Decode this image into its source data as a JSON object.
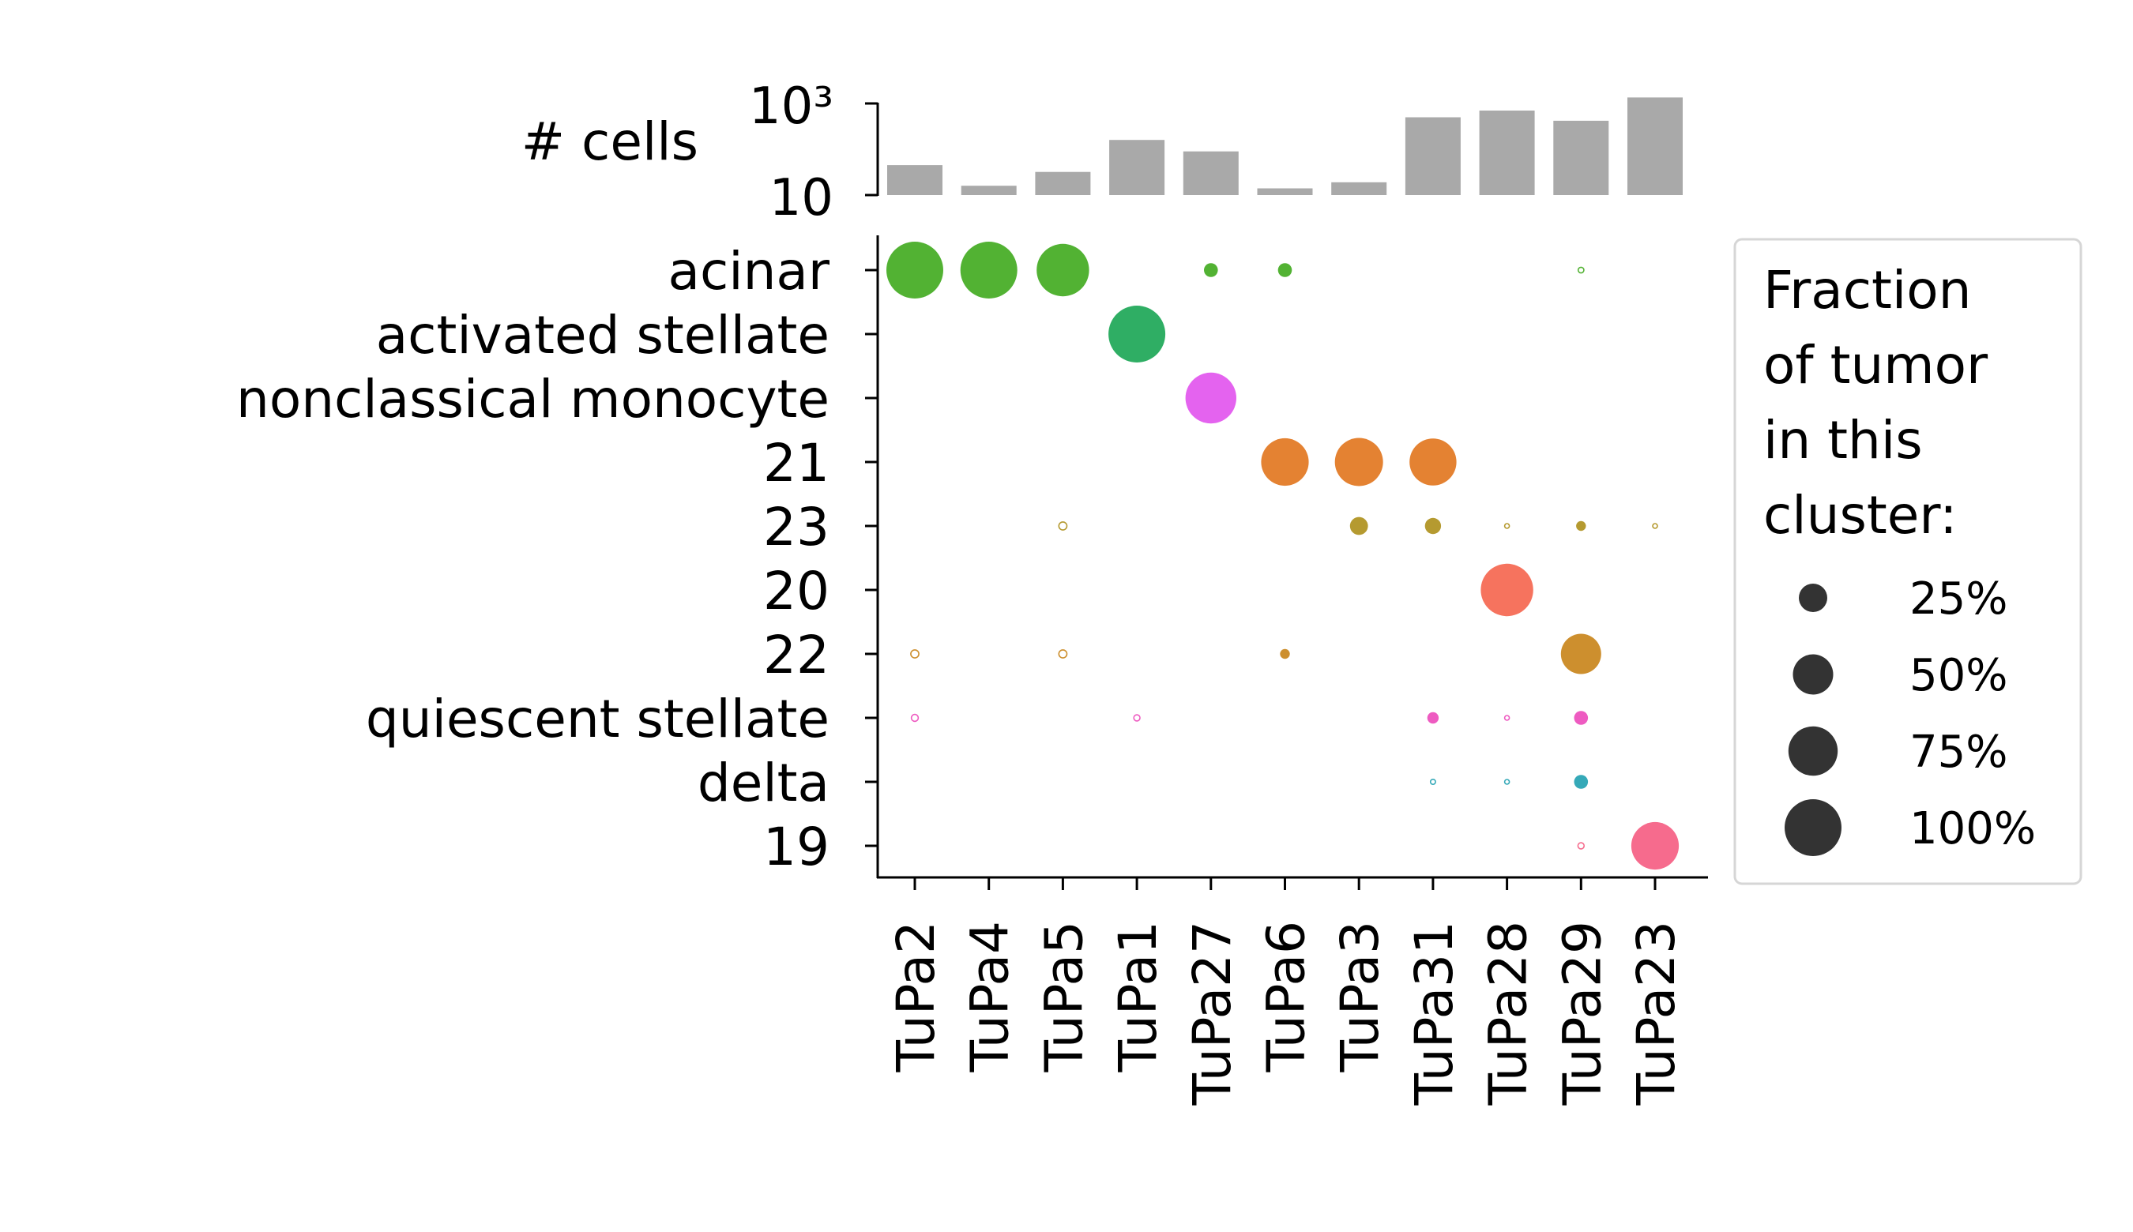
{
  "chart_data": {
    "type": "dot-plot",
    "tumors": [
      "TuPa2",
      "TuPa4",
      "TuPa5",
      "TuPa1",
      "TuPa27",
      "TuPa6",
      "TuPa3",
      "TuPa31",
      "TuPa28",
      "TuPa29",
      "TuPa23"
    ],
    "clusters": [
      "acinar",
      "activated stellate",
      "nonclassical monocyte",
      "21",
      "23",
      "20",
      "22",
      "quiescent stellate",
      "delta",
      "19"
    ],
    "cluster_colors": {
      "acinar": "#52b233",
      "activated stellate": "#2fae64",
      "nonclassical monocyte": "#e463ef",
      "21": "#e48232",
      "23": "#b59a30",
      "20": "#f6735e",
      "22": "#cd8f2e",
      "quiescent stellate": "#ee5bc1",
      "delta": "#35a9b8",
      "19": "#f66b8d"
    },
    "top_panel": {
      "ylabel": "# cells",
      "yscale": "log",
      "yticks": [
        10,
        1000
      ],
      "ytick_labels": [
        "10",
        "10³"
      ],
      "values": [
        45,
        16,
        32,
        160,
        90,
        14,
        19,
        500,
        700,
        420,
        1350
      ],
      "bar_color": "#a9a9a9"
    },
    "legend": {
      "title_lines": [
        "Fraction",
        "of tumor",
        "in this",
        "cluster:"
      ],
      "entries": [
        {
          "label": "25%",
          "fraction": 0.25
        },
        {
          "label": "50%",
          "fraction": 0.5
        },
        {
          "label": "75%",
          "fraction": 0.75
        },
        {
          "label": "100%",
          "fraction": 1.0
        }
      ]
    },
    "points": [
      {
        "tumor": "TuPa2",
        "cluster": "acinar",
        "fraction": 1.0
      },
      {
        "tumor": "TuPa4",
        "cluster": "acinar",
        "fraction": 1.0
      },
      {
        "tumor": "TuPa5",
        "cluster": "acinar",
        "fraction": 0.85
      },
      {
        "tumor": "TuPa27",
        "cluster": "acinar",
        "fraction": 0.06
      },
      {
        "tumor": "TuPa6",
        "cluster": "acinar",
        "fraction": 0.06
      },
      {
        "tumor": "TuPa29",
        "cluster": "acinar",
        "fraction": 0.01,
        "hollow": true
      },
      {
        "tumor": "TuPa1",
        "cluster": "activated stellate",
        "fraction": 1.0
      },
      {
        "tumor": "TuPa27",
        "cluster": "nonclassical monocyte",
        "fraction": 0.8
      },
      {
        "tumor": "TuPa6",
        "cluster": "21",
        "fraction": 0.7
      },
      {
        "tumor": "TuPa3",
        "cluster": "21",
        "fraction": 0.72
      },
      {
        "tumor": "TuPa31",
        "cluster": "21",
        "fraction": 0.68
      },
      {
        "tumor": "TuPa5",
        "cluster": "23",
        "fraction": 0.02,
        "hollow": true
      },
      {
        "tumor": "TuPa3",
        "cluster": "23",
        "fraction": 0.1
      },
      {
        "tumor": "TuPa31",
        "cluster": "23",
        "fraction": 0.08
      },
      {
        "tumor": "TuPa28",
        "cluster": "23",
        "fraction": 0.004,
        "hollow": true
      },
      {
        "tumor": "TuPa29",
        "cluster": "23",
        "fraction": 0.03
      },
      {
        "tumor": "TuPa23",
        "cluster": "23",
        "fraction": 0.004,
        "hollow": true
      },
      {
        "tumor": "TuPa28",
        "cluster": "20",
        "fraction": 0.85
      },
      {
        "tumor": "TuPa2",
        "cluster": "22",
        "fraction": 0.02,
        "hollow": true
      },
      {
        "tumor": "TuPa5",
        "cluster": "22",
        "fraction": 0.02,
        "hollow": true
      },
      {
        "tumor": "TuPa6",
        "cluster": "22",
        "fraction": 0.03
      },
      {
        "tumor": "TuPa29",
        "cluster": "22",
        "fraction": 0.5
      },
      {
        "tumor": "TuPa2",
        "cluster": "quiescent stellate",
        "fraction": 0.015,
        "hollow": true
      },
      {
        "tumor": "TuPa1",
        "cluster": "quiescent stellate",
        "fraction": 0.012,
        "hollow": true
      },
      {
        "tumor": "TuPa31",
        "cluster": "quiescent stellate",
        "fraction": 0.04
      },
      {
        "tumor": "TuPa28",
        "cluster": "quiescent stellate",
        "fraction": 0.006,
        "hollow": true
      },
      {
        "tumor": "TuPa29",
        "cluster": "quiescent stellate",
        "fraction": 0.06
      },
      {
        "tumor": "TuPa31",
        "cluster": "delta",
        "fraction": 0.008,
        "hollow": true
      },
      {
        "tumor": "TuPa28",
        "cluster": "delta",
        "fraction": 0.004,
        "hollow": true
      },
      {
        "tumor": "TuPa29",
        "cluster": "delta",
        "fraction": 0.06
      },
      {
        "tumor": "TuPa29",
        "cluster": "19",
        "fraction": 0.012,
        "hollow": true
      },
      {
        "tumor": "TuPa23",
        "cluster": "19",
        "fraction": 0.7
      }
    ]
  }
}
